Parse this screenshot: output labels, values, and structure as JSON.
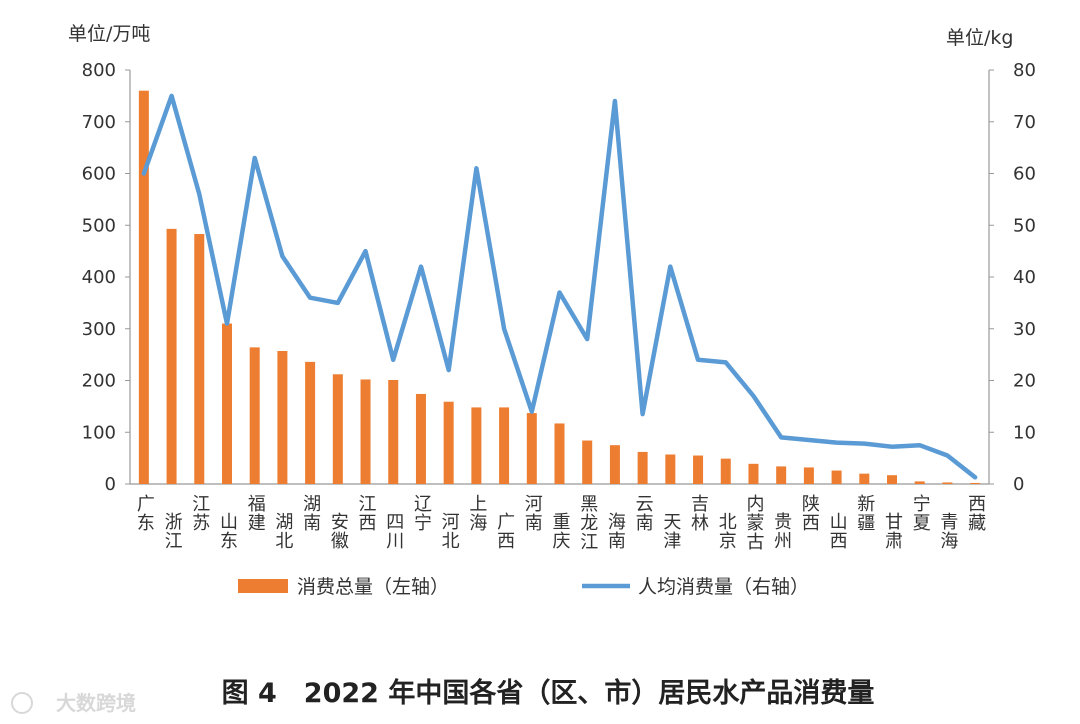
{
  "chart_data": {
    "type": "bar+line",
    "left_axis_unit": "单位/万吨",
    "right_axis_unit": "单位/kg",
    "left_ylim": [
      0,
      800
    ],
    "right_ylim": [
      0,
      80
    ],
    "left_ticks": [
      "0",
      "100",
      "200",
      "300",
      "400",
      "500",
      "600",
      "700",
      "800"
    ],
    "right_ticks": [
      "0",
      "10",
      "20",
      "30",
      "40",
      "50",
      "60",
      "70",
      "80"
    ],
    "categories": [
      "广东",
      "浙江",
      "江苏",
      "山东",
      "福建",
      "湖北",
      "湖南",
      "安徽",
      "江西",
      "四川",
      "辽宁",
      "河北",
      "上海",
      "广西",
      "河南",
      "重庆",
      "黑龙江",
      "海南",
      "云南",
      "天津",
      "吉林",
      "北京",
      "内蒙古",
      "贵州",
      "陕西",
      "山西",
      "新疆",
      "甘肃",
      "宁夏",
      "青海",
      "西藏"
    ],
    "series": [
      {
        "name": "消费总量（左轴）",
        "type": "bar",
        "axis": "left",
        "color": "#ED7D31",
        "values": [
          760,
          493,
          483,
          310,
          264,
          257,
          236,
          212,
          202,
          201,
          174,
          159,
          148,
          148,
          137,
          117,
          84,
          75,
          62,
          57,
          55,
          49,
          39,
          34,
          32,
          26,
          20,
          17,
          5,
          3,
          2
        ]
      },
      {
        "name": "人均消费量（右轴）",
        "type": "line",
        "axis": "right",
        "color": "#5B9BD5",
        "values": [
          60,
          75,
          56,
          31,
          63,
          44,
          36,
          35,
          45,
          24,
          42,
          22,
          61,
          30,
          14,
          37,
          28,
          74,
          13.5,
          42,
          24,
          23.5,
          17,
          9,
          8.5,
          8,
          7.8,
          7.2,
          7.5,
          5.5,
          1.3
        ]
      }
    ],
    "caption": "图 4　2022 年中国各省（区、市）居民水产品消费量",
    "watermark": "大数跨境"
  }
}
